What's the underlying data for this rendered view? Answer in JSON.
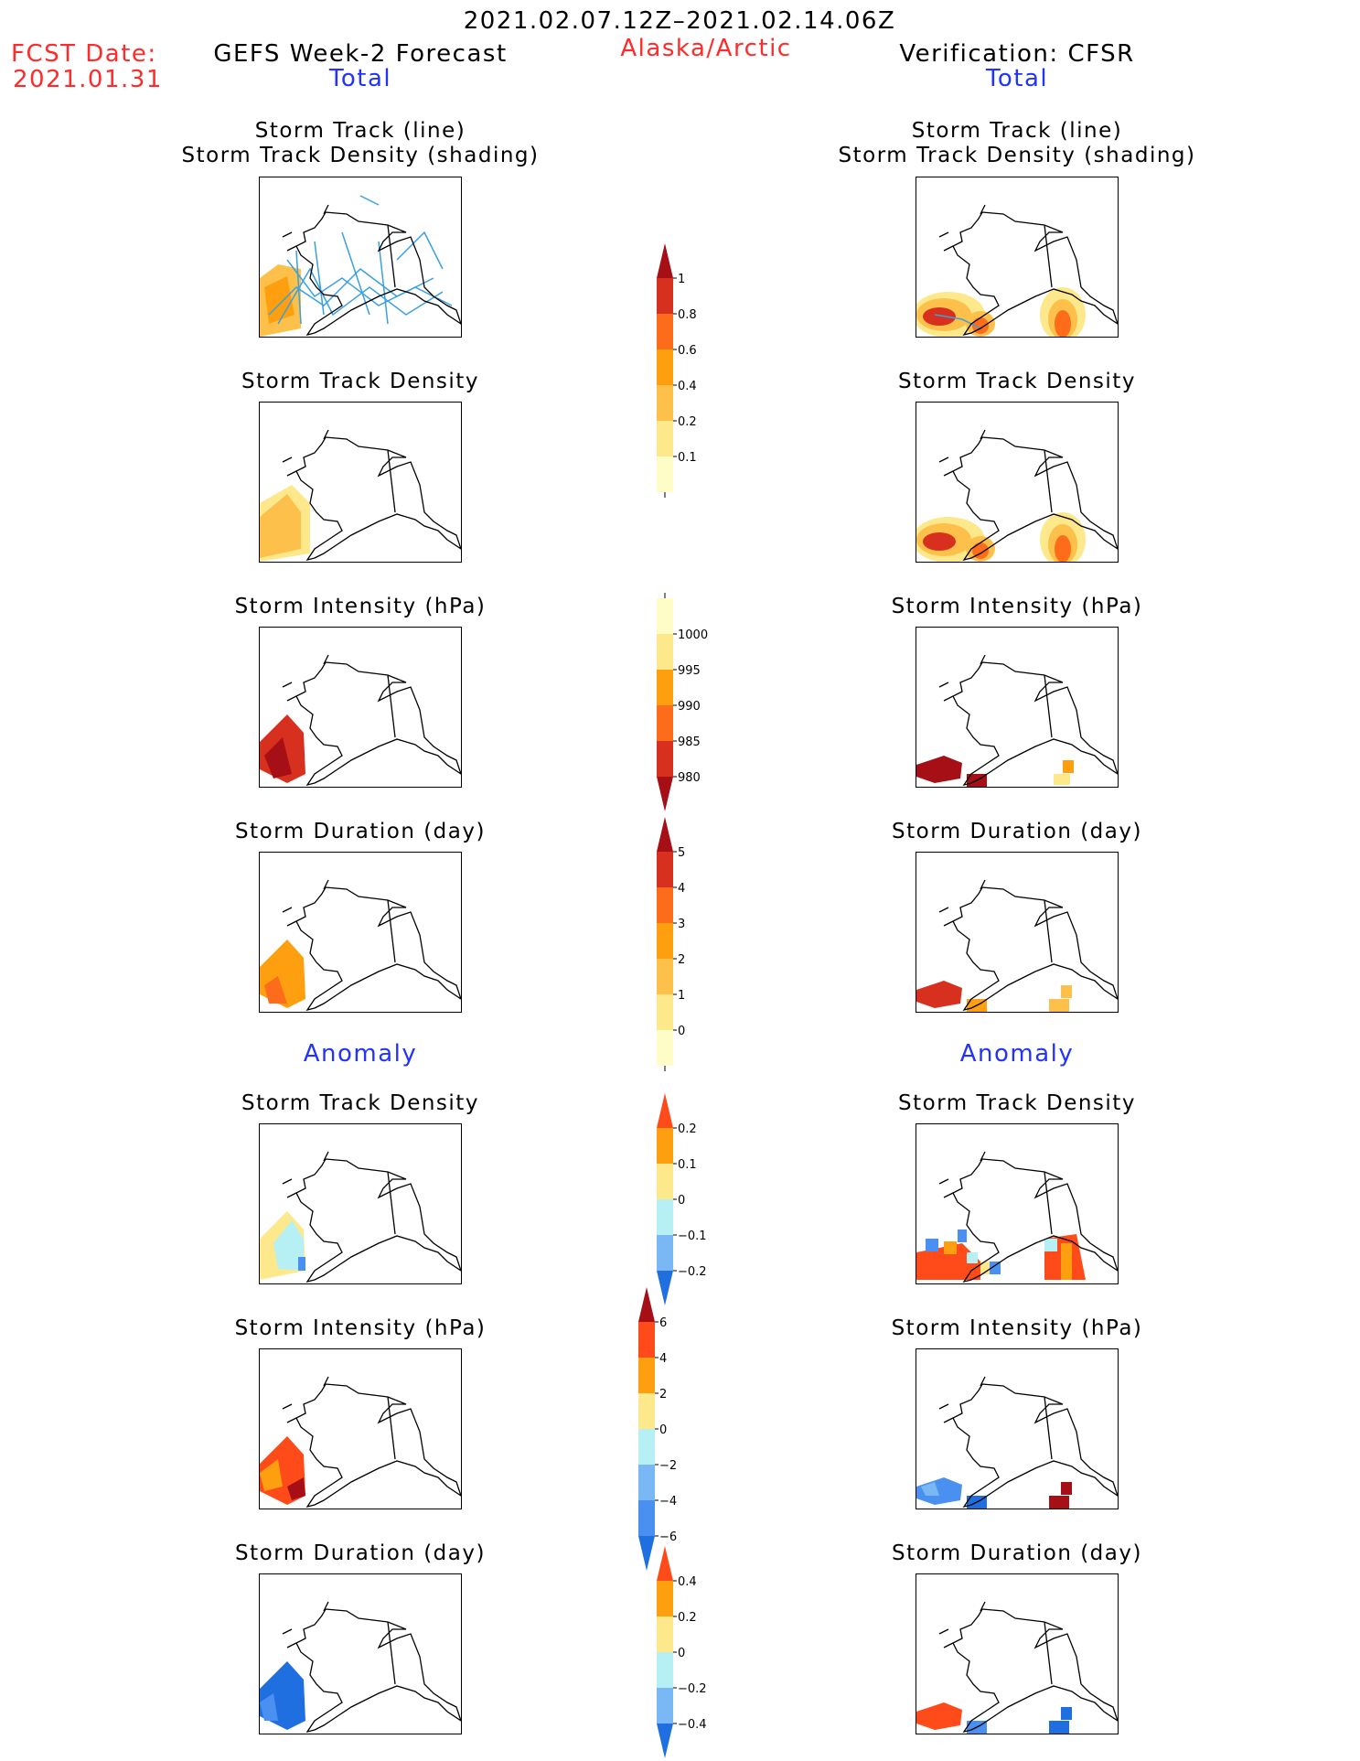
{
  "header": {
    "date_range": "2021.02.07.12Z–2021.02.14.06Z",
    "region": "Alaska/Arctic",
    "fcst_label": "FCST Date:",
    "fcst_date": "2021.01.31",
    "left_title": "GEFS Week-2 Forecast",
    "right_title": "Verification: CFSR"
  },
  "sections": {
    "total": "Total",
    "anomaly": "Anomaly"
  },
  "panel_titles": {
    "track_line": "Storm Track (line)",
    "track_shading": "Storm Track Density (shading)",
    "density": "Storm Track Density",
    "intensity": "Storm Intensity (hPa)",
    "duration": "Storm Duration (day)"
  },
  "colorbars": [
    {
      "id": "density_total",
      "ticks": [
        "1",
        "0.8",
        "0.6",
        "0.4",
        "0.2",
        "0.1"
      ],
      "colors": [
        "#a50f15",
        "#d7301f",
        "#fc6c1a",
        "#fd9f0f",
        "#fdc04a",
        "#fde98c",
        "#fffdc7"
      ],
      "arrow_top": true,
      "arrow_bottom": false
    },
    {
      "id": "intensity_total",
      "ticks": [
        "1000",
        "995",
        "990",
        "985",
        "980"
      ],
      "colors": [
        "#fffdc7",
        "#fde98c",
        "#fd9f0f",
        "#fc6c1a",
        "#d7301f",
        "#a50f15"
      ],
      "arrow_top": false,
      "arrow_bottom": true
    },
    {
      "id": "duration_total",
      "ticks": [
        "5",
        "4",
        "3",
        "2",
        "1",
        "0"
      ],
      "colors": [
        "#a50f15",
        "#d7301f",
        "#fc6c1a",
        "#fd9f0f",
        "#fdc04a",
        "#fde98c",
        "#fffdc7"
      ],
      "arrow_top": true,
      "arrow_bottom": false
    },
    {
      "id": "density_anom",
      "ticks": [
        "0.2",
        "0.1",
        "0",
        "−0.1",
        "−0.2"
      ],
      "colors": [
        "#ff4a1a",
        "#fd9f0f",
        "#fde98c",
        "#b6f0f5",
        "#7ab8f5",
        "#1f6fe0"
      ],
      "arrow_top": true,
      "arrow_bottom": true
    },
    {
      "id": "intensity_anom",
      "ticks": [
        "6",
        "4",
        "2",
        "0",
        "−2",
        "−4",
        "−6"
      ],
      "colors": [
        "#a50f15",
        "#ff4a1a",
        "#fd9f0f",
        "#fde98c",
        "#b6f0f5",
        "#7ab8f5",
        "#4a90f0",
        "#1f6fe0"
      ],
      "arrow_top": true,
      "arrow_bottom": true
    },
    {
      "id": "duration_anom",
      "ticks": [
        "0.4",
        "0.2",
        "0",
        "−0.2",
        "−0.4"
      ],
      "colors": [
        "#ff4a1a",
        "#fd9f0f",
        "#fde98c",
        "#b6f0f5",
        "#7ab8f5",
        "#1f6fe0"
      ],
      "arrow_top": true,
      "arrow_bottom": true
    }
  ]
}
